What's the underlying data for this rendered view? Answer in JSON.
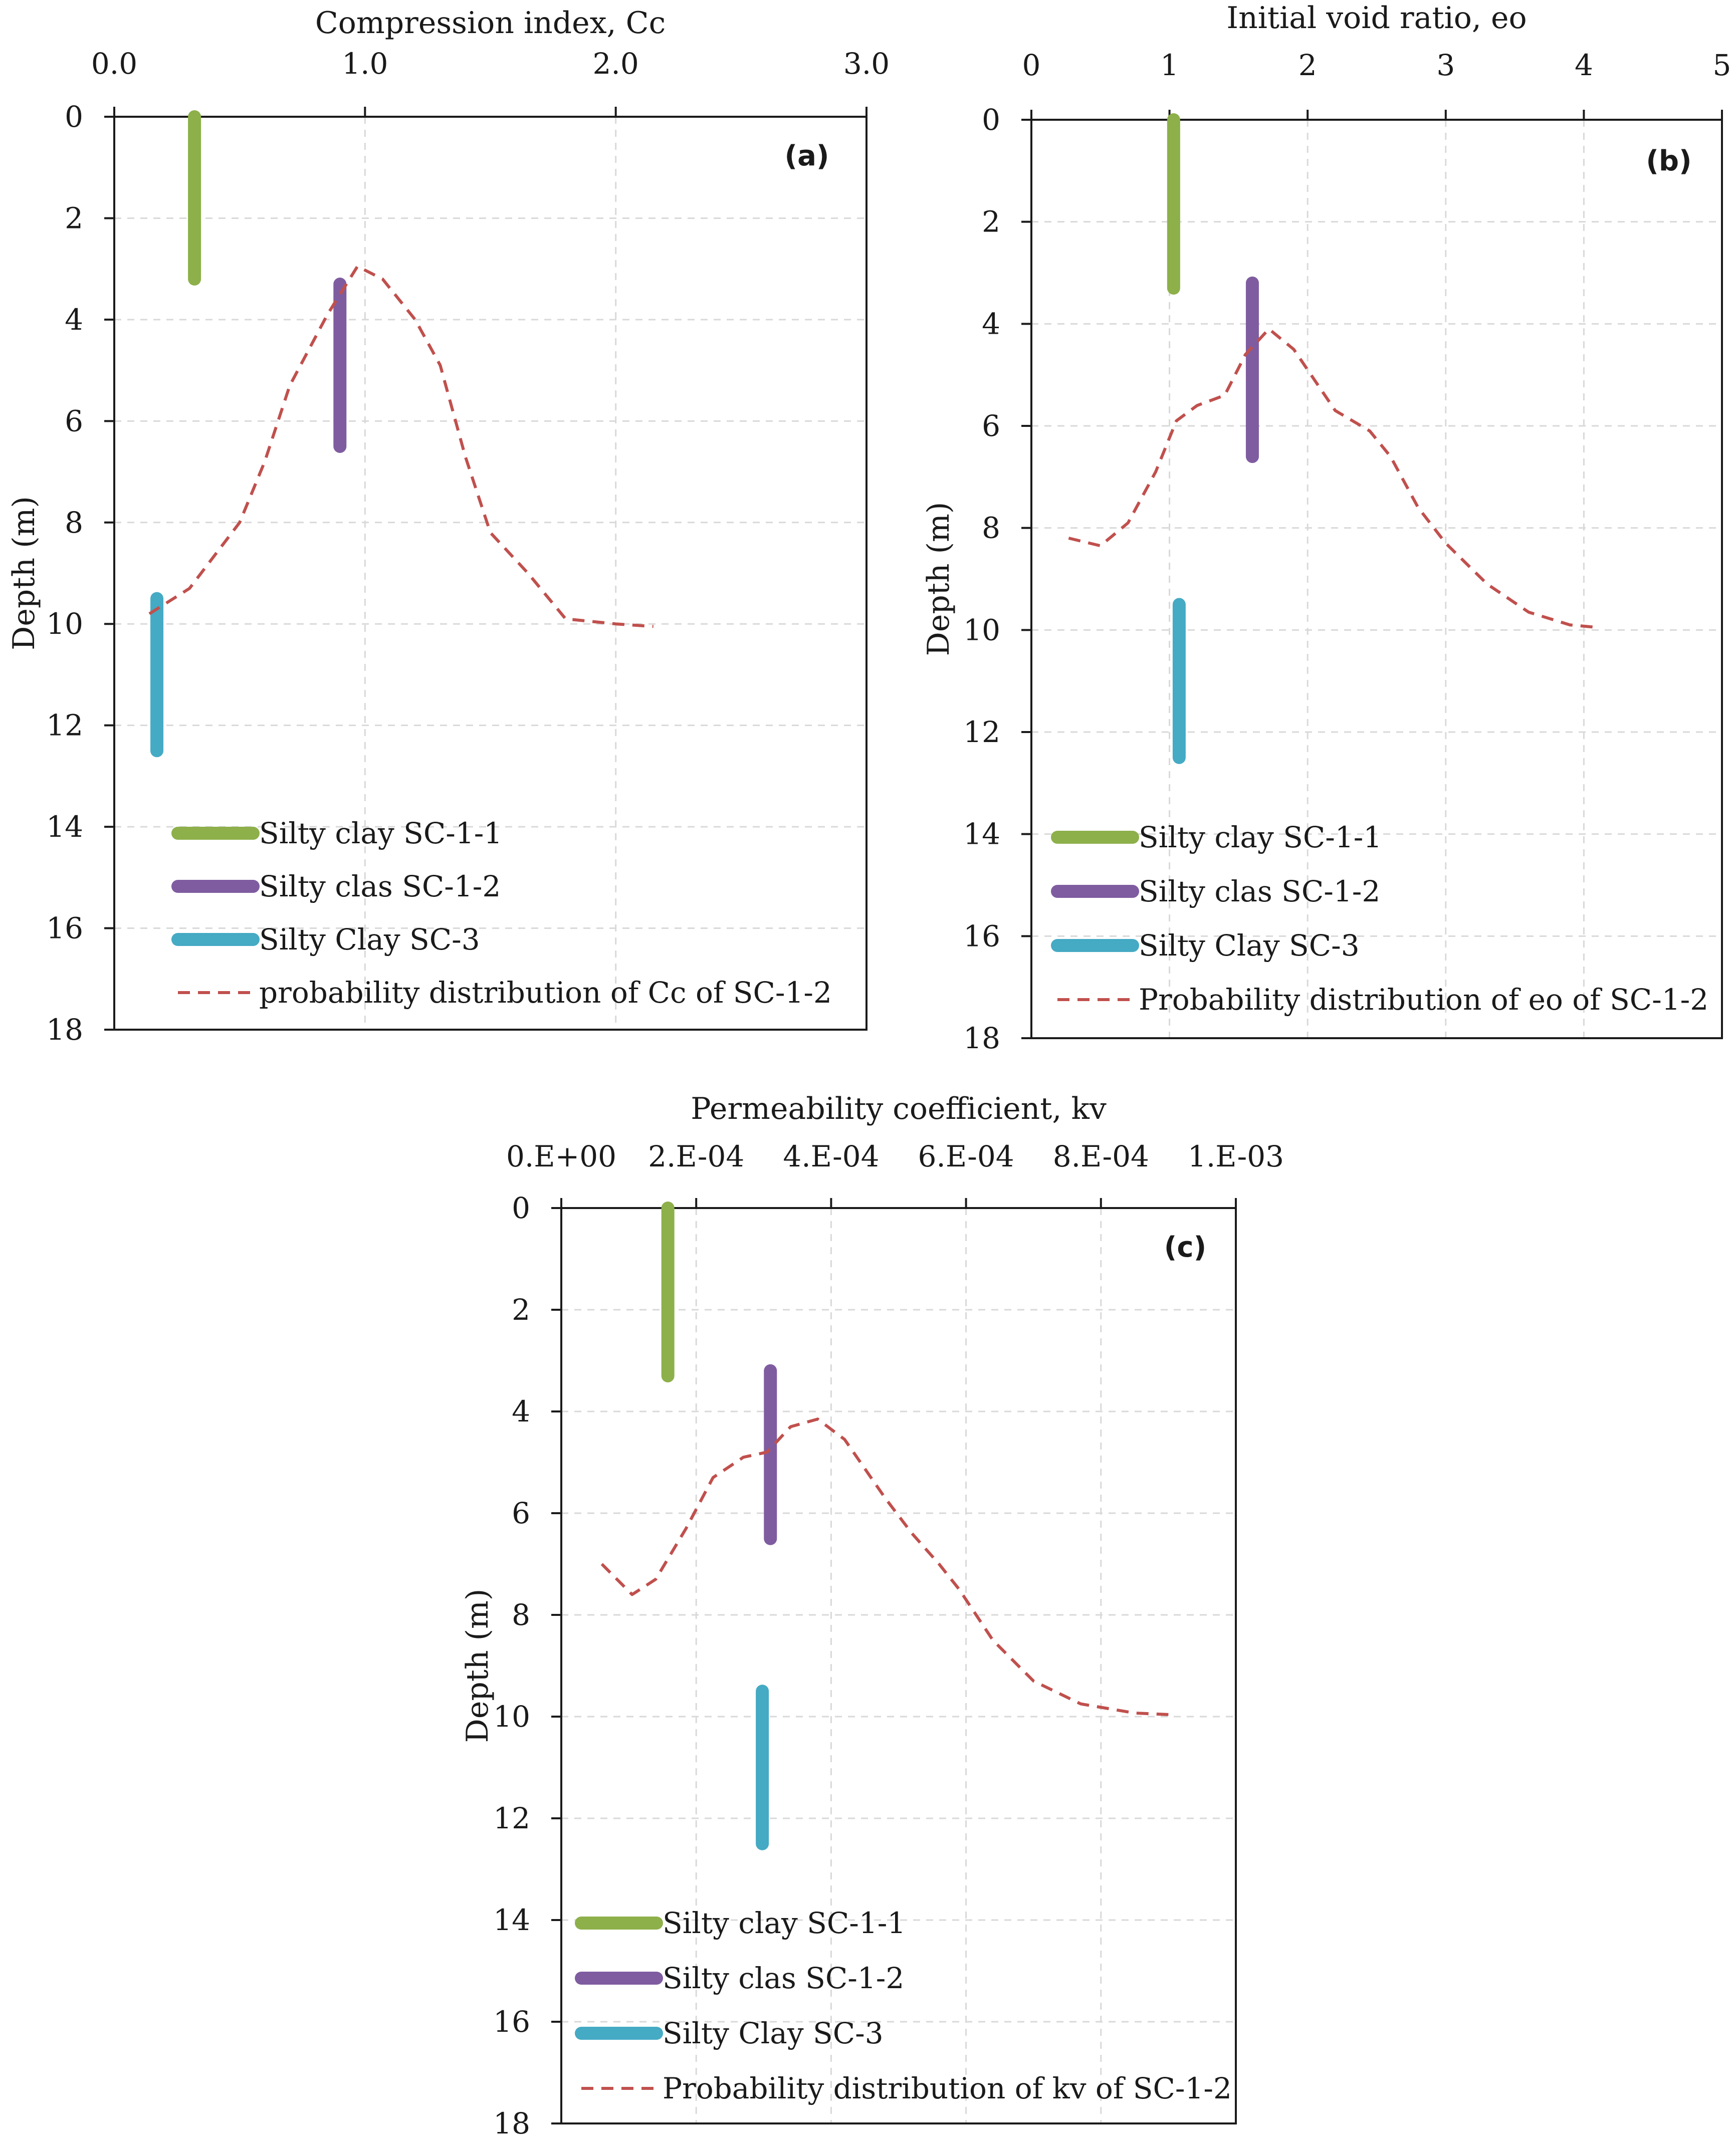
{
  "chart_data": [
    {
      "type": "line",
      "panel_label": "(a)",
      "title": "",
      "xlabel": "Compression  index,  Cc",
      "ylabel": "Depth (m)",
      "xlim": [
        0.0,
        3.0
      ],
      "ylim": [
        0,
        18
      ],
      "x_ticks": [
        "0.0",
        "1.0",
        "2.0",
        "3.0"
      ],
      "x_tick_values": [
        0,
        1,
        2,
        3
      ],
      "y_ticks": [
        "0",
        "2",
        "4",
        "6",
        "8",
        "10",
        "12",
        "14",
        "16",
        "18"
      ],
      "y_tick_values": [
        0,
        2,
        4,
        6,
        8,
        10,
        12,
        14,
        16,
        18
      ],
      "grid": true,
      "legend_position": "bottom-left",
      "series": [
        {
          "name": "Silty clay SC-1-1",
          "style": "bar",
          "color": "#8db04a",
          "x": 0.32,
          "y_top": 0.0,
          "y_bottom": 3.2
        },
        {
          "name": "Silty clas SC-1-2",
          "style": "bar",
          "color": "#7f5ca0",
          "x": 0.9,
          "y_top": 3.3,
          "y_bottom": 6.5
        },
        {
          "name": "Silty Clay SC-3",
          "style": "bar",
          "color": "#45aac4",
          "x": 0.17,
          "y_top": 9.5,
          "y_bottom": 12.5
        },
        {
          "name": "probability distribution of Cc of SC-1-2",
          "style": "dashed",
          "color": "#c0504d",
          "points": [
            [
              0.14,
              9.8
            ],
            [
              0.3,
              9.3
            ],
            [
              0.5,
              8.0
            ],
            [
              0.6,
              6.8
            ],
            [
              0.7,
              5.3
            ],
            [
              0.85,
              3.9
            ],
            [
              0.97,
              2.95
            ],
            [
              1.07,
              3.2
            ],
            [
              1.2,
              4.0
            ],
            [
              1.3,
              4.9
            ],
            [
              1.4,
              6.7
            ],
            [
              1.5,
              8.2
            ],
            [
              1.65,
              9.0
            ],
            [
              1.8,
              9.9
            ],
            [
              2.0,
              10.0
            ],
            [
              2.15,
              10.05
            ]
          ]
        }
      ]
    },
    {
      "type": "line",
      "panel_label": "(b)",
      "title": "",
      "xlabel": "Initial  void  ratio,  eo",
      "ylabel": "Depth (m)",
      "xlim": [
        0,
        5
      ],
      "ylim": [
        0,
        18
      ],
      "x_ticks": [
        "0",
        "1",
        "2",
        "3",
        "4",
        "5"
      ],
      "x_tick_values": [
        0,
        1,
        2,
        3,
        4,
        5
      ],
      "y_ticks": [
        "0",
        "2",
        "4",
        "6",
        "8",
        "10",
        "12",
        "14",
        "16",
        "18"
      ],
      "y_tick_values": [
        0,
        2,
        4,
        6,
        8,
        10,
        12,
        14,
        16,
        18
      ],
      "grid": true,
      "legend_position": "bottom-left",
      "series": [
        {
          "name": "Silty clay SC-1-1",
          "style": "bar",
          "color": "#8db04a",
          "x": 1.03,
          "y_top": 0.0,
          "y_bottom": 3.3
        },
        {
          "name": "Silty clas SC-1-2",
          "style": "bar",
          "color": "#7f5ca0",
          "x": 1.6,
          "y_top": 3.2,
          "y_bottom": 6.6
        },
        {
          "name": "Silty Clay SC-3",
          "style": "bar",
          "color": "#45aac4",
          "x": 1.07,
          "y_top": 9.5,
          "y_bottom": 12.5
        },
        {
          "name": "Probability distribution of eo of SC-1-2",
          "style": "dashed",
          "color": "#c0504d",
          "points": [
            [
              0.27,
              8.2
            ],
            [
              0.5,
              8.35
            ],
            [
              0.7,
              7.9
            ],
            [
              0.9,
              6.9
            ],
            [
              1.05,
              5.9
            ],
            [
              1.2,
              5.6
            ],
            [
              1.4,
              5.4
            ],
            [
              1.55,
              4.6
            ],
            [
              1.72,
              4.1
            ],
            [
              1.9,
              4.5
            ],
            [
              2.05,
              5.1
            ],
            [
              2.2,
              5.7
            ],
            [
              2.45,
              6.1
            ],
            [
              2.6,
              6.6
            ],
            [
              2.8,
              7.6
            ],
            [
              3.0,
              8.3
            ],
            [
              3.3,
              9.1
            ],
            [
              3.6,
              9.65
            ],
            [
              3.9,
              9.9
            ],
            [
              4.1,
              9.95
            ]
          ]
        }
      ]
    },
    {
      "type": "line",
      "panel_label": "(c)",
      "title": "",
      "xlabel": "Permeability  coefficient,  kv",
      "ylabel": "Depth (m)",
      "xlim": [
        0,
        0.001
      ],
      "ylim": [
        0,
        18
      ],
      "x_ticks": [
        "0.E+00",
        "2.E-04",
        "4.E-04",
        "6.E-04",
        "8.E-04",
        "1.E-03"
      ],
      "x_tick_values": [
        0,
        0.0002,
        0.0004,
        0.0006,
        0.0008,
        0.001
      ],
      "y_ticks": [
        "0",
        "2",
        "4",
        "6",
        "8",
        "10",
        "12",
        "14",
        "16",
        "18"
      ],
      "y_tick_values": [
        0,
        2,
        4,
        6,
        8,
        10,
        12,
        14,
        16,
        18
      ],
      "grid": true,
      "legend_position": "bottom-left",
      "series": [
        {
          "name": "Silty clay SC-1-1",
          "style": "bar",
          "color": "#8db04a",
          "x": 0.000158,
          "y_top": 0.0,
          "y_bottom": 3.3
        },
        {
          "name": "Silty clas SC-1-2",
          "style": "bar",
          "color": "#7f5ca0",
          "x": 0.00031,
          "y_top": 3.2,
          "y_bottom": 6.5
        },
        {
          "name": "Silty Clay SC-3",
          "style": "bar",
          "color": "#45aac4",
          "x": 0.000298,
          "y_top": 9.5,
          "y_bottom": 12.5
        },
        {
          "name": "Probability distribution of kv of SC-1-2",
          "style": "dashed",
          "color": "#c0504d",
          "points": [
            [
              6e-05,
              7.0
            ],
            [
              0.000105,
              7.6
            ],
            [
              0.00014,
              7.3
            ],
            [
              0.000185,
              6.3
            ],
            [
              0.000225,
              5.3
            ],
            [
              0.00027,
              4.9
            ],
            [
              0.000305,
              4.8
            ],
            [
              0.00034,
              4.3
            ],
            [
              0.00038,
              4.15
            ],
            [
              0.00042,
              4.55
            ],
            [
              0.00048,
              5.7
            ],
            [
              0.00052,
              6.4
            ],
            [
              0.00056,
              7.0
            ],
            [
              0.00059,
              7.5
            ],
            [
              0.00064,
              8.5
            ],
            [
              0.0007,
              9.3
            ],
            [
              0.00077,
              9.75
            ],
            [
              0.00085,
              9.93
            ],
            [
              0.0009,
              9.96
            ]
          ]
        }
      ]
    }
  ]
}
